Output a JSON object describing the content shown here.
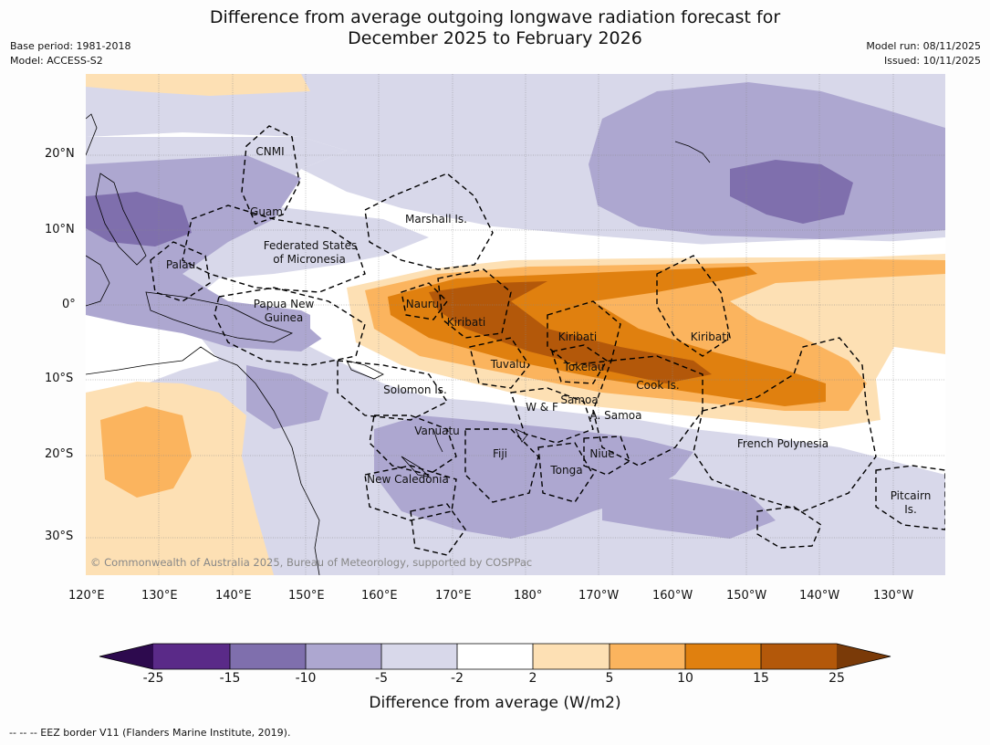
{
  "header": {
    "title_line1": "Difference from average outgoing longwave radiation forecast for",
    "title_line2": "December 2025 to February 2026",
    "base_period": "Base period: 1981-2018",
    "model": "Model: ACCESS-S2",
    "model_run": "Model run: 08/11/2025",
    "issued": "Issued: 10/11/2025"
  },
  "axes": {
    "lon_labels": [
      "120°E",
      "130°E",
      "140°E",
      "150°E",
      "160°E",
      "170°E",
      "180°",
      "170°W",
      "160°W",
      "150°W",
      "140°W",
      "130°W"
    ],
    "lat_labels": [
      "20°N",
      "10°N",
      "0°",
      "10°S",
      "20°S",
      "30°S"
    ]
  },
  "regions": [
    "CNMI",
    "Guam",
    "Marshall Is.",
    "Federated States",
    "of Micronesia",
    "Palau",
    "Papua New",
    "Guinea",
    "Nauru",
    "Kiribati",
    "Kiribati",
    "Kiribati",
    "Tuvalu",
    "Tokelau",
    "Cook Is.",
    "Solomon Is.",
    "W & F",
    "Samoa",
    "A. Samoa",
    "Vanuatu",
    "Fiji",
    "Niue",
    "Tonga",
    "New Caledonia",
    "French Polynesia",
    "Pitcairn",
    "Is."
  ],
  "colorbar": {
    "ticks": [
      "-25",
      "-15",
      "-10",
      "-5",
      "-2",
      "2",
      "5",
      "10",
      "15",
      "25"
    ],
    "colors": {
      "lt25": "#2d0a4e",
      "m25_m15": "#5a2a88",
      "m15_m10": "#7f6fad",
      "m10_m5": "#ada7d0",
      "m5_m2": "#d8d8ea",
      "m2_2": "#ffffff",
      "p2_5": "#fde0b4",
      "p5_10": "#fbb45e",
      "p10_15": "#e0800f",
      "p15_25": "#b3580a",
      "gt25": "#7a3a08"
    },
    "title": "Difference from average (W/m2)"
  },
  "copyright": "© Commonwealth of Australia 2025, Bureau of Meteorology, supported by COSPPac",
  "footer": "--  --  -- EEZ border V11 (Flanders Marine Institute, 2019)."
}
